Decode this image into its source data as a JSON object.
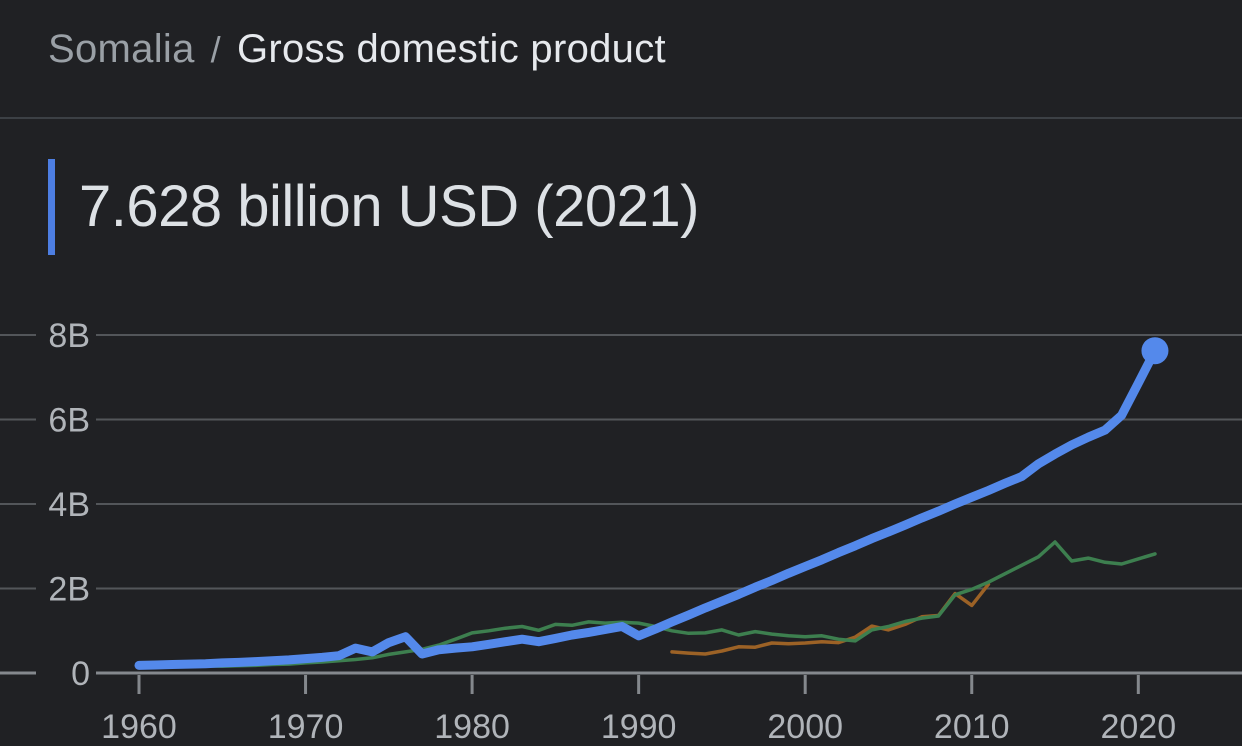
{
  "breadcrumb": {
    "location": "Somalia",
    "separator": "/",
    "metric": "Gross domestic product"
  },
  "headline": {
    "value_text": "7.628 billion USD (2021)"
  },
  "colors": {
    "background": "#202124",
    "header_divider": "#3c4045",
    "headline_accent": "#4d7ee2",
    "primary_line_blue": "#5489eb",
    "comparison_line_green": "#3d7f4f",
    "comparison_line_orange": "#9c6226",
    "gridline": "#53565a",
    "axis_line": "#85898e",
    "tick_mark": "#84888d",
    "tick_label": "#b0b4b9"
  },
  "chart_data": {
    "type": "line",
    "title": "7.628 billion USD (2021)",
    "xlabel": "",
    "ylabel": "",
    "unit": "billion USD (current)",
    "x_ticks": [
      1960,
      1970,
      1980,
      1990,
      2000,
      2010,
      2020
    ],
    "y_ticks": [
      0,
      2,
      4,
      6,
      8
    ],
    "y_tick_labels": [
      "0",
      "2B",
      "4B",
      "6B",
      "8B"
    ],
    "xlim": [
      1957.5,
      2025.2
    ],
    "ylim": [
      0,
      9.2
    ],
    "grid": true,
    "legend": "none",
    "series": [
      {
        "name": "comparison-orange",
        "label": "",
        "color": "#9c6226",
        "stroke_width": 3.5,
        "endpoint_dot": false,
        "x": [
          1992,
          1993,
          1994,
          1995,
          1996,
          1997,
          1998,
          1999,
          2000,
          2001,
          2002,
          2003,
          2004,
          2005,
          2006,
          2007,
          2008,
          2009,
          2010,
          2011
        ],
        "values": [
          0.5,
          0.47,
          0.45,
          0.52,
          0.62,
          0.61,
          0.71,
          0.69,
          0.71,
          0.74,
          0.72,
          0.85,
          1.11,
          1.02,
          1.15,
          1.33,
          1.36,
          1.88,
          1.6,
          2.1
        ]
      },
      {
        "name": "comparison-green",
        "label": "",
        "color": "#3d7f4f",
        "stroke_width": 3.5,
        "endpoint_dot": false,
        "x": [
          1960,
          1961,
          1962,
          1963,
          1964,
          1965,
          1966,
          1967,
          1968,
          1969,
          1970,
          1971,
          1972,
          1973,
          1974,
          1975,
          1976,
          1977,
          1978,
          1979,
          1980,
          1981,
          1982,
          1983,
          1984,
          1985,
          1986,
          1987,
          1988,
          1989,
          1990,
          1991,
          1992,
          1993,
          1994,
          1995,
          1996,
          1997,
          1998,
          1999,
          2000,
          2001,
          2002,
          2003,
          2004,
          2005,
          2006,
          2007,
          2008,
          2009,
          2010,
          2011,
          2012,
          2013,
          2014,
          2015,
          2016,
          2017,
          2018,
          2019,
          2020,
          2021
        ],
        "values": [
          0.2,
          0.19,
          0.19,
          0.18,
          0.17,
          0.16,
          0.17,
          0.18,
          0.2,
          0.21,
          0.24,
          0.26,
          0.29,
          0.32,
          0.36,
          0.44,
          0.5,
          0.56,
          0.66,
          0.8,
          0.95,
          1.0,
          1.06,
          1.1,
          1.01,
          1.15,
          1.13,
          1.21,
          1.18,
          1.2,
          1.18,
          1.1,
          1.0,
          0.94,
          0.95,
          1.02,
          0.9,
          0.98,
          0.92,
          0.88,
          0.86,
          0.88,
          0.8,
          0.76,
          1.02,
          1.1,
          1.22,
          1.3,
          1.35,
          1.85,
          1.98,
          2.15,
          2.35,
          2.55,
          2.75,
          3.1,
          2.65,
          2.72,
          2.62,
          2.58,
          2.7,
          2.82
        ]
      },
      {
        "name": "somalia-gdp",
        "label": "",
        "color": "#5489eb",
        "stroke_width": 9,
        "endpoint_dot": true,
        "x": [
          1960,
          1961,
          1962,
          1963,
          1964,
          1965,
          1966,
          1967,
          1968,
          1969,
          1970,
          1971,
          1972,
          1973,
          1974,
          1975,
          1976,
          1977,
          1978,
          1979,
          1980,
          1981,
          1982,
          1983,
          1984,
          1985,
          1986,
          1987,
          1988,
          1989,
          1990,
          1991,
          1992,
          1993,
          1994,
          1995,
          1996,
          1997,
          1998,
          1999,
          2000,
          2001,
          2002,
          2003,
          2004,
          2005,
          2006,
          2007,
          2008,
          2009,
          2010,
          2011,
          2012,
          2013,
          2014,
          2015,
          2016,
          2017,
          2018,
          2019,
          2020,
          2021
        ],
        "values": [
          0.18,
          0.19,
          0.2,
          0.21,
          0.22,
          0.24,
          0.25,
          0.27,
          0.29,
          0.31,
          0.34,
          0.37,
          0.41,
          0.59,
          0.5,
          0.72,
          0.86,
          0.45,
          0.55,
          0.59,
          0.62,
          0.68,
          0.74,
          0.8,
          0.74,
          0.82,
          0.9,
          0.96,
          1.03,
          1.1,
          0.88,
          1.04,
          1.21,
          1.37,
          1.54,
          1.7,
          1.86,
          2.03,
          2.19,
          2.36,
          2.52,
          2.68,
          2.85,
          3.01,
          3.18,
          3.34,
          3.5,
          3.67,
          3.83,
          4.0,
          4.16,
          4.32,
          4.49,
          4.65,
          4.95,
          5.18,
          5.4,
          5.58,
          5.75,
          6.1,
          6.86,
          7.628
        ]
      }
    ]
  }
}
